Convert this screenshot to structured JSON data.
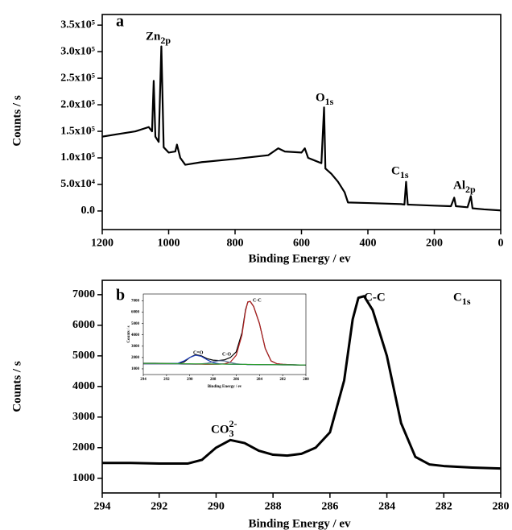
{
  "chart_data": [
    {
      "type": "line",
      "x_label": "Binding Energy / ev",
      "y_label": "Counts / s",
      "xlim": [
        1200,
        0
      ],
      "xticks": [
        1200,
        1000,
        800,
        600,
        400,
        200,
        0
      ],
      "ylim": [
        -35000,
        370000
      ],
      "yticks": [
        {
          "value": 0,
          "label": "0.0"
        },
        {
          "value": 50000,
          "label": "5.0x10⁴"
        },
        {
          "value": 100000,
          "label": "1.0x10⁵"
        },
        {
          "value": 150000,
          "label": "1.5x10⁵"
        },
        {
          "value": 200000,
          "label": "2.0x10⁵"
        },
        {
          "value": 250000,
          "label": "2.5x10⁵"
        },
        {
          "value": 300000,
          "label": "3.0x10⁵"
        },
        {
          "value": 350000,
          "label": "3.5x10⁵"
        }
      ],
      "x": [
        1200,
        1150,
        1100,
        1060,
        1050,
        1045,
        1040,
        1030,
        1022,
        1015,
        1000,
        980,
        975,
        965,
        950,
        900,
        800,
        700,
        670,
        650,
        600,
        590,
        580,
        560,
        540,
        532,
        528,
        510,
        490,
        470,
        460,
        400,
        300,
        290,
        285,
        280,
        200,
        150,
        140,
        135,
        100,
        95,
        90,
        85,
        50,
        0
      ],
      "series": [
        {
          "color": "#000000",
          "values": [
            140000,
            145000,
            150000,
            158000,
            150000,
            245000,
            140000,
            130000,
            310000,
            120000,
            110000,
            112000,
            125000,
            100000,
            87000,
            92000,
            98000,
            105000,
            118000,
            112000,
            110000,
            118000,
            100000,
            95000,
            90000,
            195000,
            80000,
            70000,
            55000,
            35000,
            16000,
            15000,
            13000,
            12000,
            55000,
            12000,
            10000,
            9000,
            25000,
            9000,
            7000,
            17000,
            28000,
            5000,
            3000,
            1000
          ]
        }
      ],
      "annotations": [
        {
          "parts": [
            {
              "text": "a"
            }
          ]
        },
        {
          "parts": [
            {
              "text": "Zn"
            },
            {
              "text": "2p",
              "shift": "sub"
            }
          ]
        },
        {
          "parts": [
            {
              "text": "O"
            },
            {
              "text": "1s",
              "shift": "sub"
            }
          ]
        },
        {
          "parts": [
            {
              "text": "C"
            },
            {
              "text": "1s",
              "shift": "sub"
            }
          ]
        },
        {
          "parts": [
            {
              "text": "Al"
            },
            {
              "text": "2p",
              "shift": "sub"
            }
          ]
        }
      ]
    },
    {
      "type": "line",
      "x_label": "Binding Energy / ev",
      "y_label": "Counts / s",
      "xlim": [
        294,
        280
      ],
      "xticks": [
        294,
        292,
        290,
        288,
        286,
        284,
        282,
        280
      ],
      "ylim": [
        520,
        7470
      ],
      "yticks": [
        1000,
        2000,
        3000,
        4000,
        5000,
        6000,
        7000
      ],
      "x": [
        294,
        293,
        292,
        291,
        290.5,
        290,
        289.5,
        289,
        288.5,
        288,
        287.5,
        287,
        286.5,
        286,
        285.5,
        285.2,
        285,
        284.8,
        284.5,
        284,
        283.5,
        283,
        282.5,
        282,
        281,
        280
      ],
      "series": [
        {
          "color": "#000000",
          "values": [
            1500,
            1500,
            1480,
            1480,
            1600,
            2000,
            2250,
            2150,
            1900,
            1770,
            1740,
            1800,
            2000,
            2500,
            4200,
            6200,
            6900,
            6950,
            6500,
            5000,
            2800,
            1700,
            1450,
            1400,
            1350,
            1320
          ]
        }
      ],
      "annotations": [
        {
          "parts": [
            {
              "text": "b"
            }
          ]
        },
        {
          "parts": [
            {
              "text": "C-C"
            }
          ]
        },
        {
          "parts": [
            {
              "text": "C"
            },
            {
              "text": "1s",
              "shift": "sub"
            }
          ]
        },
        {
          "parts": [
            {
              "text": "CO"
            },
            {
              "text": "3",
              "shift": "sub"
            },
            {
              "text": "2-",
              "shift": "super"
            }
          ]
        }
      ]
    },
    {
      "type": "line",
      "x_label": "Binding Energy / ev",
      "y_label": "Counts / s",
      "xlim": [
        294,
        280
      ],
      "xticks": [
        294,
        292,
        290,
        288,
        286,
        284,
        282,
        280
      ],
      "ylim": [
        500,
        7600
      ],
      "yticks": [
        1000,
        2000,
        3000,
        4000,
        5000,
        6000,
        7000
      ],
      "x": [
        294,
        293,
        292,
        291,
        290.5,
        290,
        289.5,
        289,
        288.5,
        288,
        287.5,
        287,
        286.5,
        286,
        285.5,
        285.2,
        285,
        284.8,
        284.5,
        284,
        283.5,
        283,
        282.5,
        282,
        281,
        280
      ],
      "series": [
        {
          "color": "#000000",
          "values": [
            1500,
            1500,
            1480,
            1480,
            1600,
            2000,
            2250,
            2150,
            1900,
            1770,
            1740,
            1800,
            2000,
            2500,
            4200,
            6200,
            6900,
            6950,
            6500,
            5000,
            2800,
            1700,
            1450,
            1400,
            1350,
            1320
          ]
        },
        {
          "color": "#b22222",
          "values": [
            1450,
            1450,
            1440,
            1430,
            1420,
            1420,
            1410,
            1410,
            1400,
            1400,
            1410,
            1450,
            1600,
            2200,
            4000,
            6100,
            6900,
            6950,
            6500,
            5000,
            2800,
            1700,
            1450,
            1400,
            1350,
            1320
          ]
        },
        {
          "color": "#1f3fbf",
          "values": [
            1450,
            1450,
            1460,
            1500,
            1700,
            2000,
            2200,
            2100,
            1800,
            1550,
            1450,
            1420,
            1410,
            1400,
            1390,
            1390,
            1380,
            1380,
            1380,
            1370,
            1370,
            1360,
            1360,
            1350,
            1350,
            1340
          ]
        },
        {
          "color": "#5a6e9a",
          "values": [
            1450,
            1450,
            1440,
            1430,
            1420,
            1420,
            1420,
            1440,
            1500,
            1620,
            1720,
            1700,
            1560,
            1450,
            1400,
            1390,
            1380,
            1380,
            1380,
            1370,
            1370,
            1360,
            1360,
            1350,
            1350,
            1340
          ]
        },
        {
          "color": "#2e9e2e",
          "values": [
            1480,
            1480,
            1470,
            1460,
            1455,
            1450,
            1445,
            1440,
            1435,
            1430,
            1425,
            1420,
            1415,
            1410,
            1400,
            1395,
            1390,
            1390,
            1385,
            1380,
            1375,
            1370,
            1365,
            1360,
            1350,
            1340
          ]
        }
      ],
      "annotations": [
        {
          "parts": [
            {
              "text": "C=O"
            }
          ]
        },
        {
          "parts": [
            {
              "text": "C-O"
            }
          ]
        },
        {
          "parts": [
            {
              "text": "C-C"
            }
          ]
        }
      ]
    }
  ]
}
